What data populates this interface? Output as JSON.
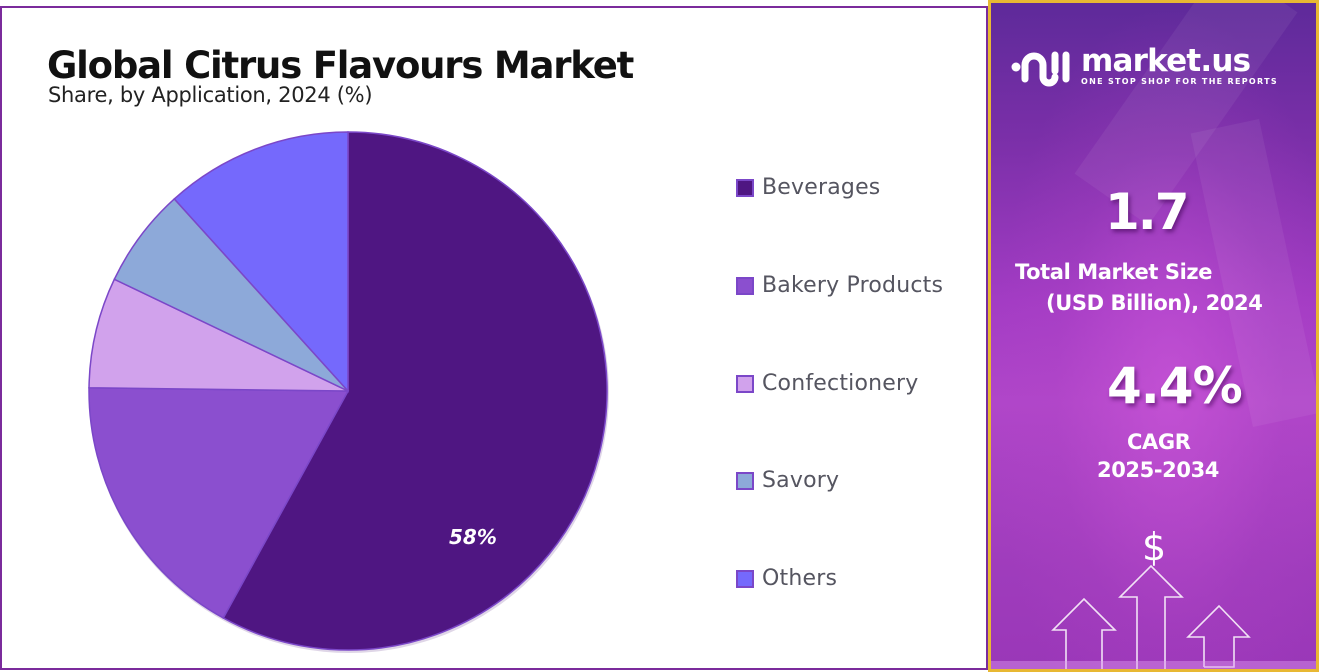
{
  "header": {
    "title": "Global Citrus Flavours Market",
    "subtitle": "Share, by Application, 2024 (%)"
  },
  "chart_data": {
    "type": "pie",
    "title": "Global Citrus Flavours Market",
    "subtitle": "Share, by Application, 2024 (%)",
    "categories": [
      "Beverages",
      "Bakery Products",
      "Confectionery",
      "Savory",
      "Others"
    ],
    "values": [
      58,
      17.2,
      6.9,
      6.2,
      11.7
    ],
    "colors": [
      "#4f1682",
      "#8b4fcf",
      "#d1a2ec",
      "#8da9d9",
      "#7569fc"
    ],
    "data_labels": [
      {
        "category": "Beverages",
        "text": "58%"
      }
    ],
    "start_angle": 0,
    "direction": "clockwise",
    "legend_position": "right"
  },
  "pie": {
    "labels": {
      "beverages": "58%"
    }
  },
  "legend": {
    "items": [
      {
        "label": "Beverages",
        "color": "#4f1682"
      },
      {
        "label": "Bakery Products",
        "color": "#8b4fcf"
      },
      {
        "label": "Confectionery",
        "color": "#d1a2ec"
      },
      {
        "label": "Savory",
        "color": "#8da9d9"
      },
      {
        "label": "Others",
        "color": "#7569fc"
      }
    ]
  },
  "sidebar": {
    "brand": {
      "name": "market.us",
      "tagline": "ONE STOP SHOP FOR THE REPORTS"
    },
    "market_size": {
      "value": "1.7",
      "caption_line1": "Total Market Size",
      "caption_line2": "(USD Billion), 2024"
    },
    "cagr": {
      "value": "4.4%",
      "caption_line1": "CAGR",
      "caption_line2": "2025-2034"
    },
    "dollar_icon": "$"
  },
  "colors": {
    "panel_border": "#7b2b9c",
    "sidebar_border": "#e8b833"
  }
}
